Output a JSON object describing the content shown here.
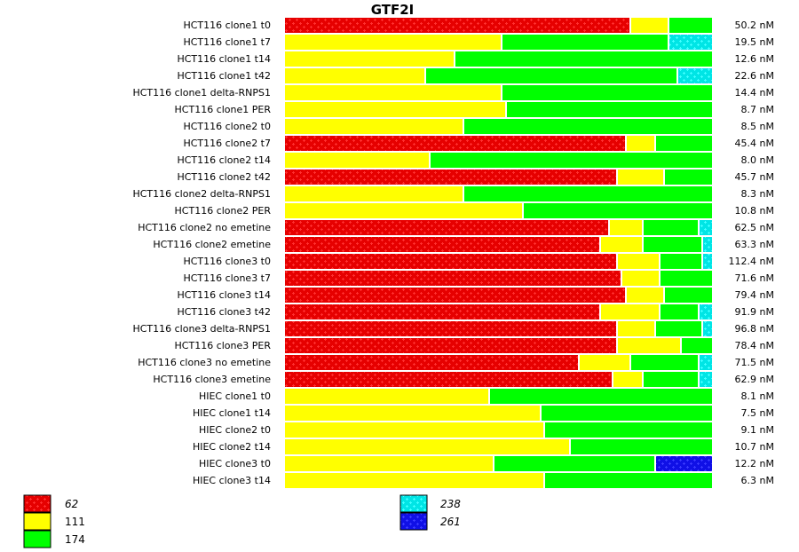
{
  "chart_data": {
    "type": "bar",
    "orientation": "horizontal",
    "stacked": true,
    "normalized": true,
    "title": "GTF2I",
    "xlabel": "",
    "ylabel": "",
    "grid": false,
    "legend_position": "bottom",
    "categories": [
      "HCT116 clone1 t0",
      "HCT116 clone1 t7",
      "HCT116 clone1 t14",
      "HCT116 clone1 t42",
      "HCT116 clone1 delta-RNPS1",
      "HCT116 clone1 PER",
      "HCT116 clone2 t0",
      "HCT116 clone2 t7",
      "HCT116 clone2 t14",
      "HCT116 clone2 t42",
      "HCT116 clone2 delta-RNPS1",
      "HCT116 clone2 PER",
      "HCT116 clone2 no emetine",
      "HCT116 clone2 emetine",
      "HCT116 clone3 t0",
      "HCT116 clone3 t7",
      "HCT116 clone3 t14",
      "HCT116 clone3 t42",
      "HCT116 clone3 delta-RNPS1",
      "HCT116 clone3 PER",
      "HCT116 clone3 no emetine",
      "HCT116 clone3 emetine",
      "HIEC clone1 t0",
      "HIEC clone1 t14",
      "HIEC clone2 t0",
      "HIEC clone2 t14",
      "HIEC clone3 t0",
      "HIEC clone3 t14"
    ],
    "value_labels": [
      "50.2 nM",
      "19.5 nM",
      "12.6 nM",
      "22.6 nM",
      "14.4 nM",
      "8.7 nM",
      "8.5 nM",
      "45.4 nM",
      "8.0 nM",
      "45.7 nM",
      "8.3 nM",
      "10.8 nM",
      "62.5 nM",
      "63.3 nM",
      "112.4 nM",
      "71.6 nM",
      "79.4 nM",
      "91.9 nM",
      "96.8 nM",
      "78.4 nM",
      "71.5 nM",
      "62.9 nM",
      "8.1 nM",
      "7.5 nM",
      "9.1 nM",
      "10.7 nM",
      "12.2 nM",
      "6.3 nM"
    ],
    "series": [
      {
        "name": "62",
        "color": "#e60000",
        "pattern": true,
        "values": [
          0.81,
          0,
          0,
          0,
          0,
          0,
          0,
          0.8,
          0,
          0.78,
          0,
          0,
          0.76,
          0.74,
          0.78,
          0.79,
          0.8,
          0.74,
          0.78,
          0.78,
          0.69,
          0.77,
          0,
          0,
          0,
          0,
          0,
          0
        ]
      },
      {
        "name": "111",
        "color": "#ffff00",
        "pattern": false,
        "values": [
          0.09,
          0.51,
          0.4,
          0.33,
          0.51,
          0.52,
          0.42,
          0.07,
          0.34,
          0.11,
          0.42,
          0.56,
          0.08,
          0.1,
          0.1,
          0.09,
          0.09,
          0.14,
          0.09,
          0.15,
          0.12,
          0.07,
          0.48,
          0.6,
          0.61,
          0.67,
          0.49,
          0.61
        ]
      },
      {
        "name": "174",
        "color": "#00ff00",
        "pattern": false,
        "values": [
          0.1,
          0.39,
          0.6,
          0.59,
          0.49,
          0.48,
          0.58,
          0.13,
          0.66,
          0.11,
          0.58,
          0.44,
          0.13,
          0.14,
          0.1,
          0.12,
          0.11,
          0.09,
          0.11,
          0.07,
          0.16,
          0.13,
          0.52,
          0.4,
          0.39,
          0.33,
          0.38,
          0.39
        ]
      },
      {
        "name": "238",
        "color": "#00e5e5",
        "pattern": true,
        "values": [
          0,
          0.1,
          0,
          0.08,
          0,
          0,
          0,
          0,
          0,
          0,
          0,
          0,
          0.03,
          0.02,
          0.02,
          0,
          0,
          0.03,
          0.02,
          0,
          0.03,
          0.03,
          0,
          0,
          0,
          0,
          0,
          0
        ]
      },
      {
        "name": "261",
        "color": "#1010e6",
        "pattern": true,
        "values": [
          0,
          0,
          0,
          0,
          0,
          0,
          0,
          0,
          0,
          0,
          0,
          0,
          0,
          0,
          0,
          0,
          0,
          0,
          0,
          0,
          0,
          0,
          0,
          0,
          0,
          0,
          0.13,
          0
        ]
      }
    ],
    "legend": [
      {
        "label": "62",
        "italic": true
      },
      {
        "label": "111",
        "italic": false
      },
      {
        "label": "174",
        "italic": false
      },
      {
        "label": "238",
        "italic": true
      },
      {
        "label": "261",
        "italic": true
      }
    ]
  }
}
